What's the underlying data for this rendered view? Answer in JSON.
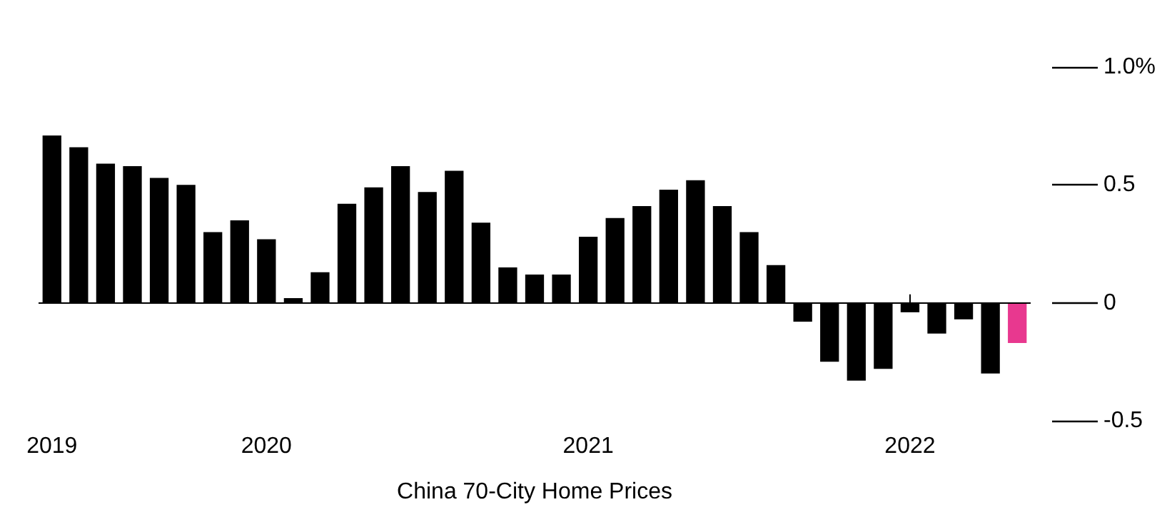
{
  "chart_data": {
    "type": "bar",
    "xlabel": "China 70-City Home Prices",
    "categories": [
      "2019",
      null,
      null,
      null,
      null,
      null,
      null,
      null,
      "2020",
      null,
      null,
      null,
      null,
      null,
      null,
      null,
      null,
      null,
      null,
      null,
      "2021",
      null,
      null,
      null,
      null,
      null,
      null,
      null,
      null,
      null,
      null,
      null,
      "2022",
      null,
      null,
      null,
      null
    ],
    "values": [
      0.71,
      0.66,
      0.59,
      0.58,
      0.53,
      0.5,
      0.3,
      0.35,
      0.27,
      0.02,
      0.13,
      0.42,
      0.49,
      0.58,
      0.47,
      0.56,
      0.34,
      0.15,
      0.12,
      0.12,
      0.28,
      0.36,
      0.41,
      0.48,
      0.52,
      0.41,
      0.3,
      0.16,
      -0.08,
      -0.25,
      -0.33,
      -0.28,
      -0.04,
      -0.13,
      -0.07,
      -0.3,
      -0.17
    ],
    "colors": [
      "#000000",
      "#000000",
      "#000000",
      "#000000",
      "#000000",
      "#000000",
      "#000000",
      "#000000",
      "#000000",
      "#000000",
      "#000000",
      "#000000",
      "#000000",
      "#000000",
      "#000000",
      "#000000",
      "#000000",
      "#000000",
      "#000000",
      "#000000",
      "#000000",
      "#000000",
      "#000000",
      "#000000",
      "#000000",
      "#000000",
      "#000000",
      "#000000",
      "#000000",
      "#000000",
      "#000000",
      "#000000",
      "#000000",
      "#000000",
      "#000000",
      "#000000",
      "#e8388f"
    ],
    "ylim": [
      -0.5,
      1.0
    ],
    "yticks": [
      -0.5,
      0,
      0.5,
      {
        "value": 1.0,
        "label": "1.0%"
      }
    ],
    "ref_lines": [
      {
        "axis": "y",
        "value": 0,
        "color": "#000000"
      }
    ],
    "grid": false
  }
}
